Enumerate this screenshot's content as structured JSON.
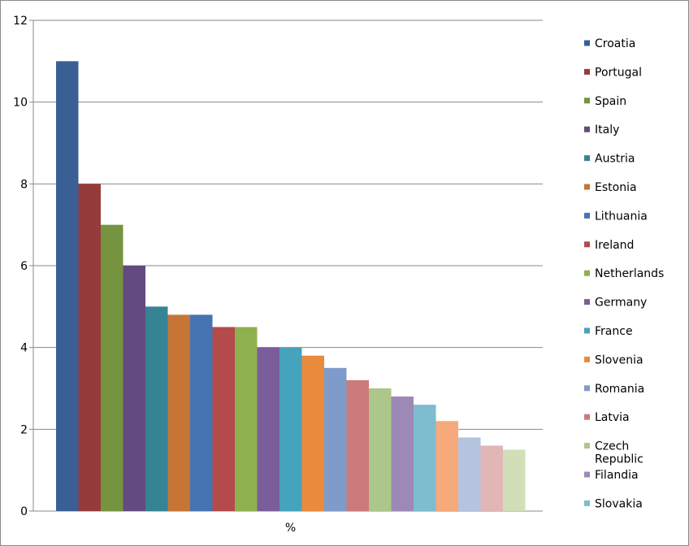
{
  "chart_data": {
    "type": "bar",
    "xlabel": "",
    "ylabel": "",
    "categories": [
      "%"
    ],
    "ylim": [
      0,
      12
    ],
    "yticks": [
      0,
      2,
      4,
      6,
      8,
      10,
      12
    ],
    "grid": true,
    "legend_position": "right",
    "series": [
      {
        "name": "Croatia",
        "values": [
          11
        ],
        "color": "#3a5f95"
      },
      {
        "name": "Portugal",
        "values": [
          8
        ],
        "color": "#963b3b"
      },
      {
        "name": "Spain",
        "values": [
          7
        ],
        "color": "#769340"
      },
      {
        "name": "Italy",
        "values": [
          6
        ],
        "color": "#634b7f"
      },
      {
        "name": "Austria",
        "values": [
          5
        ],
        "color": "#368493"
      },
      {
        "name": "Estonia",
        "values": [
          4.8
        ],
        "color": "#c67537"
      },
      {
        "name": "Lithuania",
        "values": [
          4.8
        ],
        "color": "#4674b3"
      },
      {
        "name": "Ireland",
        "values": [
          4.5
        ],
        "color": "#b34b4a"
      },
      {
        "name": "Netherlands",
        "values": [
          4.5
        ],
        "color": "#8fb04f"
      },
      {
        "name": "Germany",
        "values": [
          4
        ],
        "color": "#7b5d99"
      },
      {
        "name": "France",
        "values": [
          4
        ],
        "color": "#46a3bc"
      },
      {
        "name": "Slovenia",
        "values": [
          3.8
        ],
        "color": "#ea8a3c"
      },
      {
        "name": "Romania",
        "values": [
          3.5
        ],
        "color": "#7f9bc9"
      },
      {
        "name": "Latvia",
        "values": [
          3.2
        ],
        "color": "#cc7a7a"
      },
      {
        "name": "Czech Republic",
        "values": [
          3
        ],
        "color": "#adc689"
      },
      {
        "name": "Filandia",
        "values": [
          2.8
        ],
        "color": "#9c89b6"
      },
      {
        "name": "Slovakia",
        "values": [
          2.6
        ],
        "color": "#7ebccf"
      },
      {
        "name": "",
        "values": [
          2.2
        ],
        "color": "#f6a97a"
      },
      {
        "name": "",
        "values": [
          1.8
        ],
        "color": "#b6c3de"
      },
      {
        "name": "",
        "values": [
          1.6
        ],
        "color": "#e0b7b6"
      },
      {
        "name": "",
        "values": [
          1.5
        ],
        "color": "#d0dfb8"
      }
    ]
  }
}
